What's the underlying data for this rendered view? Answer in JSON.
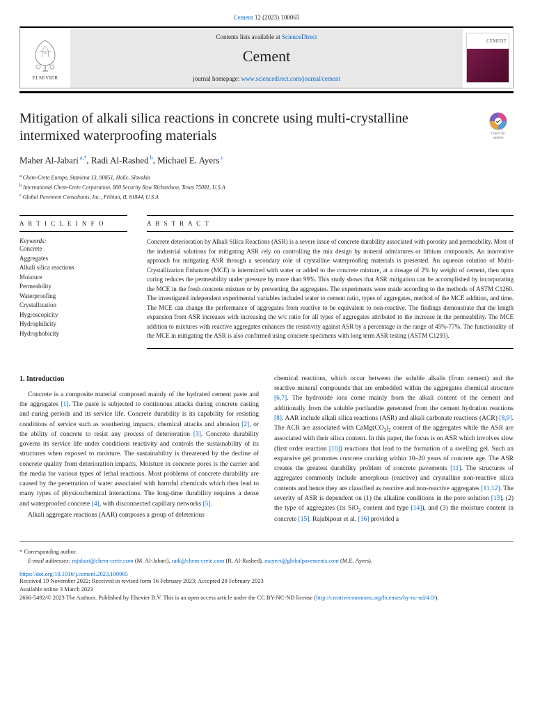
{
  "top_ref": {
    "journal": "Cement",
    "issue": "12 (2023) 100065"
  },
  "header": {
    "contents_prefix": "Contents lists available at ",
    "contents_link": "ScienceDirect",
    "journal_name": "Cement",
    "homepage_prefix": "journal homepage: ",
    "homepage_url": "www.sciencedirect.com/journal/cement",
    "elsevier_label": "ELSEVIER",
    "cover_label": "CEMENT"
  },
  "check_updates": {
    "label1": "Check for",
    "label2": "updates"
  },
  "title": "Mitigation of alkali silica reactions in concrete using multi-crystalline intermixed waterproofing materials",
  "authors": [
    {
      "name": "Maher Al-Jabari",
      "sup": "a,*"
    },
    {
      "name": "Radi Al-Rashed",
      "sup": "b"
    },
    {
      "name": "Michael E. Ayers",
      "sup": "c"
    }
  ],
  "affiliations": [
    {
      "sup": "a",
      "text": "Chem-Crete Europe, Stanicna 13, 90851, Holic, Slovakia"
    },
    {
      "sup": "b",
      "text": "International Chem-Crete Corporation, 800 Security Row Richardson, Texas 75081, U.S.A"
    },
    {
      "sup": "c",
      "text": "Global Pavement Consultants, Inc., Fithian, IL 61844, U.S.A"
    }
  ],
  "info_head": "A R T I C L E  I N F O",
  "abstract_head": "A B S T R A C T",
  "keywords_label": "Keywords:",
  "keywords": [
    "Concrete",
    "Aggregates",
    "Alkali silica reactions",
    "Moisture",
    "Permeability",
    "Waterproofing",
    "Crystallization",
    "Hygroscopicity",
    "Hydrophilicity",
    "Hydrophobicity"
  ],
  "abstract": "Concrete deterioration by Alkali Silica Reactions (ASR) is a severe issue of concrete durability associated with porosity and permeability. Most of the industrial solutions for mitigating ASR rely on controlling the mix design by mineral admixtures or lithium compounds. An innovative approach for mitigating ASR through a secondary role of crystalline waterproofing materials is presented. An aqueous solution of Multi-Crystallization Enhancer (MCE) is intermixed with water or added to the concrete mixture, at a dosage of 2% by weight of cement, then upon curing reduces the permeability under pressure by more than 99%. This study shows that ASR mitigation can be accomplished by incorporating the MCE in the fresh concrete mixture or by prewetting the aggregates. The experiments were made according to the methods of ASTM C1260. The investigated independent experimental variables included water to cement ratio, types of aggregates, method of the MCE addition, and time. The MCE can change the performance of aggregates from reactive to be equivalent to non-reactive. The findings demonstrate that the length expansion from ASR increases with increasing the w/c ratio for all types of aggregates attributed to the increase in the permeability. The MCE addition to mixtures with reactive aggregates enhances the resistivity against ASR by a percentage in the range of 45%-77%. The functionality of the MCE in mitigating the ASR is also confirmed using concrete specimens with long term ASR testing (ASTM C1293).",
  "intro_head": "1. Introduction",
  "col1_p1a": "Concrete is a composite material composed mainly of the hydrated cement paste and the aggregates ",
  "col1_r1": "[1]",
  "col1_p1b": ". The paste is subjected to continuous attacks during concrete casting and curing periods and its service life. Concrete durability is its capability for resisting conditions of service such as weathering impacts, chemical attacks and abrasion ",
  "col1_r2": "[2]",
  "col1_p1c": ", or the ability of concrete to resist any process of deterioration ",
  "col1_r3": "[3]",
  "col1_p1d": ". Concrete durability governs its service life under conditions reactivity and controls the sustainability of its structures when exposed to moisture. The sustainability is threatened by the decline of concrete quality from deterioration impacts. Moisture in concrete pores is the carrier and the media for various types of lethal reactions. Most problems of concrete durability are caused by the penetration of water associated with harmful chemicals which then lead to many types of physicochemical interactions. The long-time durability requires a dense and waterproofed concrete ",
  "col1_r4": "[4]",
  "col1_p1e": ", with disconnected capillary networks ",
  "col1_r5": "[5]",
  "col1_p1f": ".",
  "col1_p2": "Alkali aggregate reactions (AAR) composes a group of deleterious",
  "col2_a": "chemical reactions, which occur between the soluble alkalis (from cement) and the reactive mineral compounds that are embedded within the aggregates chemical structure ",
  "col2_r67": "[6,7]",
  "col2_b": ". The hydroxide ions come mainly from the alkali content of the cement and additionally from the soluble portlandite generated from the cement hydration reactions ",
  "col2_r8": "[8]",
  "col2_c": ". AAR include alkali silica reactions (ASR) and alkali carbonate reactions (ACR) ",
  "col2_r89": "[8,9]",
  "col2_d": ". The ACR are associated with CaMg(CO",
  "col2_d2": ")",
  "col2_d3": " content of the aggregates while the ASR are associated with their silica content.  In this paper, the focus is on ASR which involves slow (first order reaction ",
  "col2_r10": "[10]",
  "col2_e": ") reactions that lead to the formation of a swelling gel. Such an expansive gel promotes concrete cracking within 10–20 years of concrete age. The ASR creates the greatest durability problem of concrete pavements ",
  "col2_r11": "[11]",
  "col2_f": ". The structures of aggregates commonly include amorphous (reactive) and crystalline non-reactive silica contents and hence they are classified as reactive and non-reactive aggregates ",
  "col2_r1112": "[11,12]",
  "col2_g": ". The severity of ASR is dependent on (1) the alkaline conditions in the pore solution ",
  "col2_r13": "[13]",
  "col2_h": ", (2) the type of aggregates (its SiO",
  "col2_h2": " content and type ",
  "col2_r14": "[14]",
  "col2_i": "), and (3) the moisture content in concrete ",
  "col2_r15": "[15]",
  "col2_j": ". Rajabipour et al. ",
  "col2_r16": "[16]",
  "col2_k": " provided a",
  "corresponding": {
    "star": "* Corresponding author.",
    "email_label": "E-mail addresses: ",
    "emails": [
      {
        "addr": "mjabari@chem-crete.com",
        "who": " (M. Al-Jabari), "
      },
      {
        "addr": "radi@chem-crete.com",
        "who": " (R. Al-Rashed), "
      },
      {
        "addr": "mayers@globalpavements.com",
        "who": " (M.E. Ayers)."
      }
    ]
  },
  "doi": "https://doi.org/10.1016/j.cement.2023.100065",
  "received": "Received 19 November 2022; Received in revised form 16 February 2023; Accepted 28 February 2023",
  "available": "Available online 3 March 2023",
  "copyright_a": "2666-5492/© 2023 The Authors. Published by Elsevier B.V. This is an open access article under the CC BY-NC-ND license (",
  "license_url": "http://creativecommons.org/licenses/by-nc-nd/4.0/",
  "copyright_b": ").",
  "colors": {
    "link": "#0066cc",
    "rule": "#000000",
    "header_bg": "#e8e8e8",
    "cover_grad_a": "#7a1a4a",
    "cover_grad_b": "#4a0a2a"
  }
}
